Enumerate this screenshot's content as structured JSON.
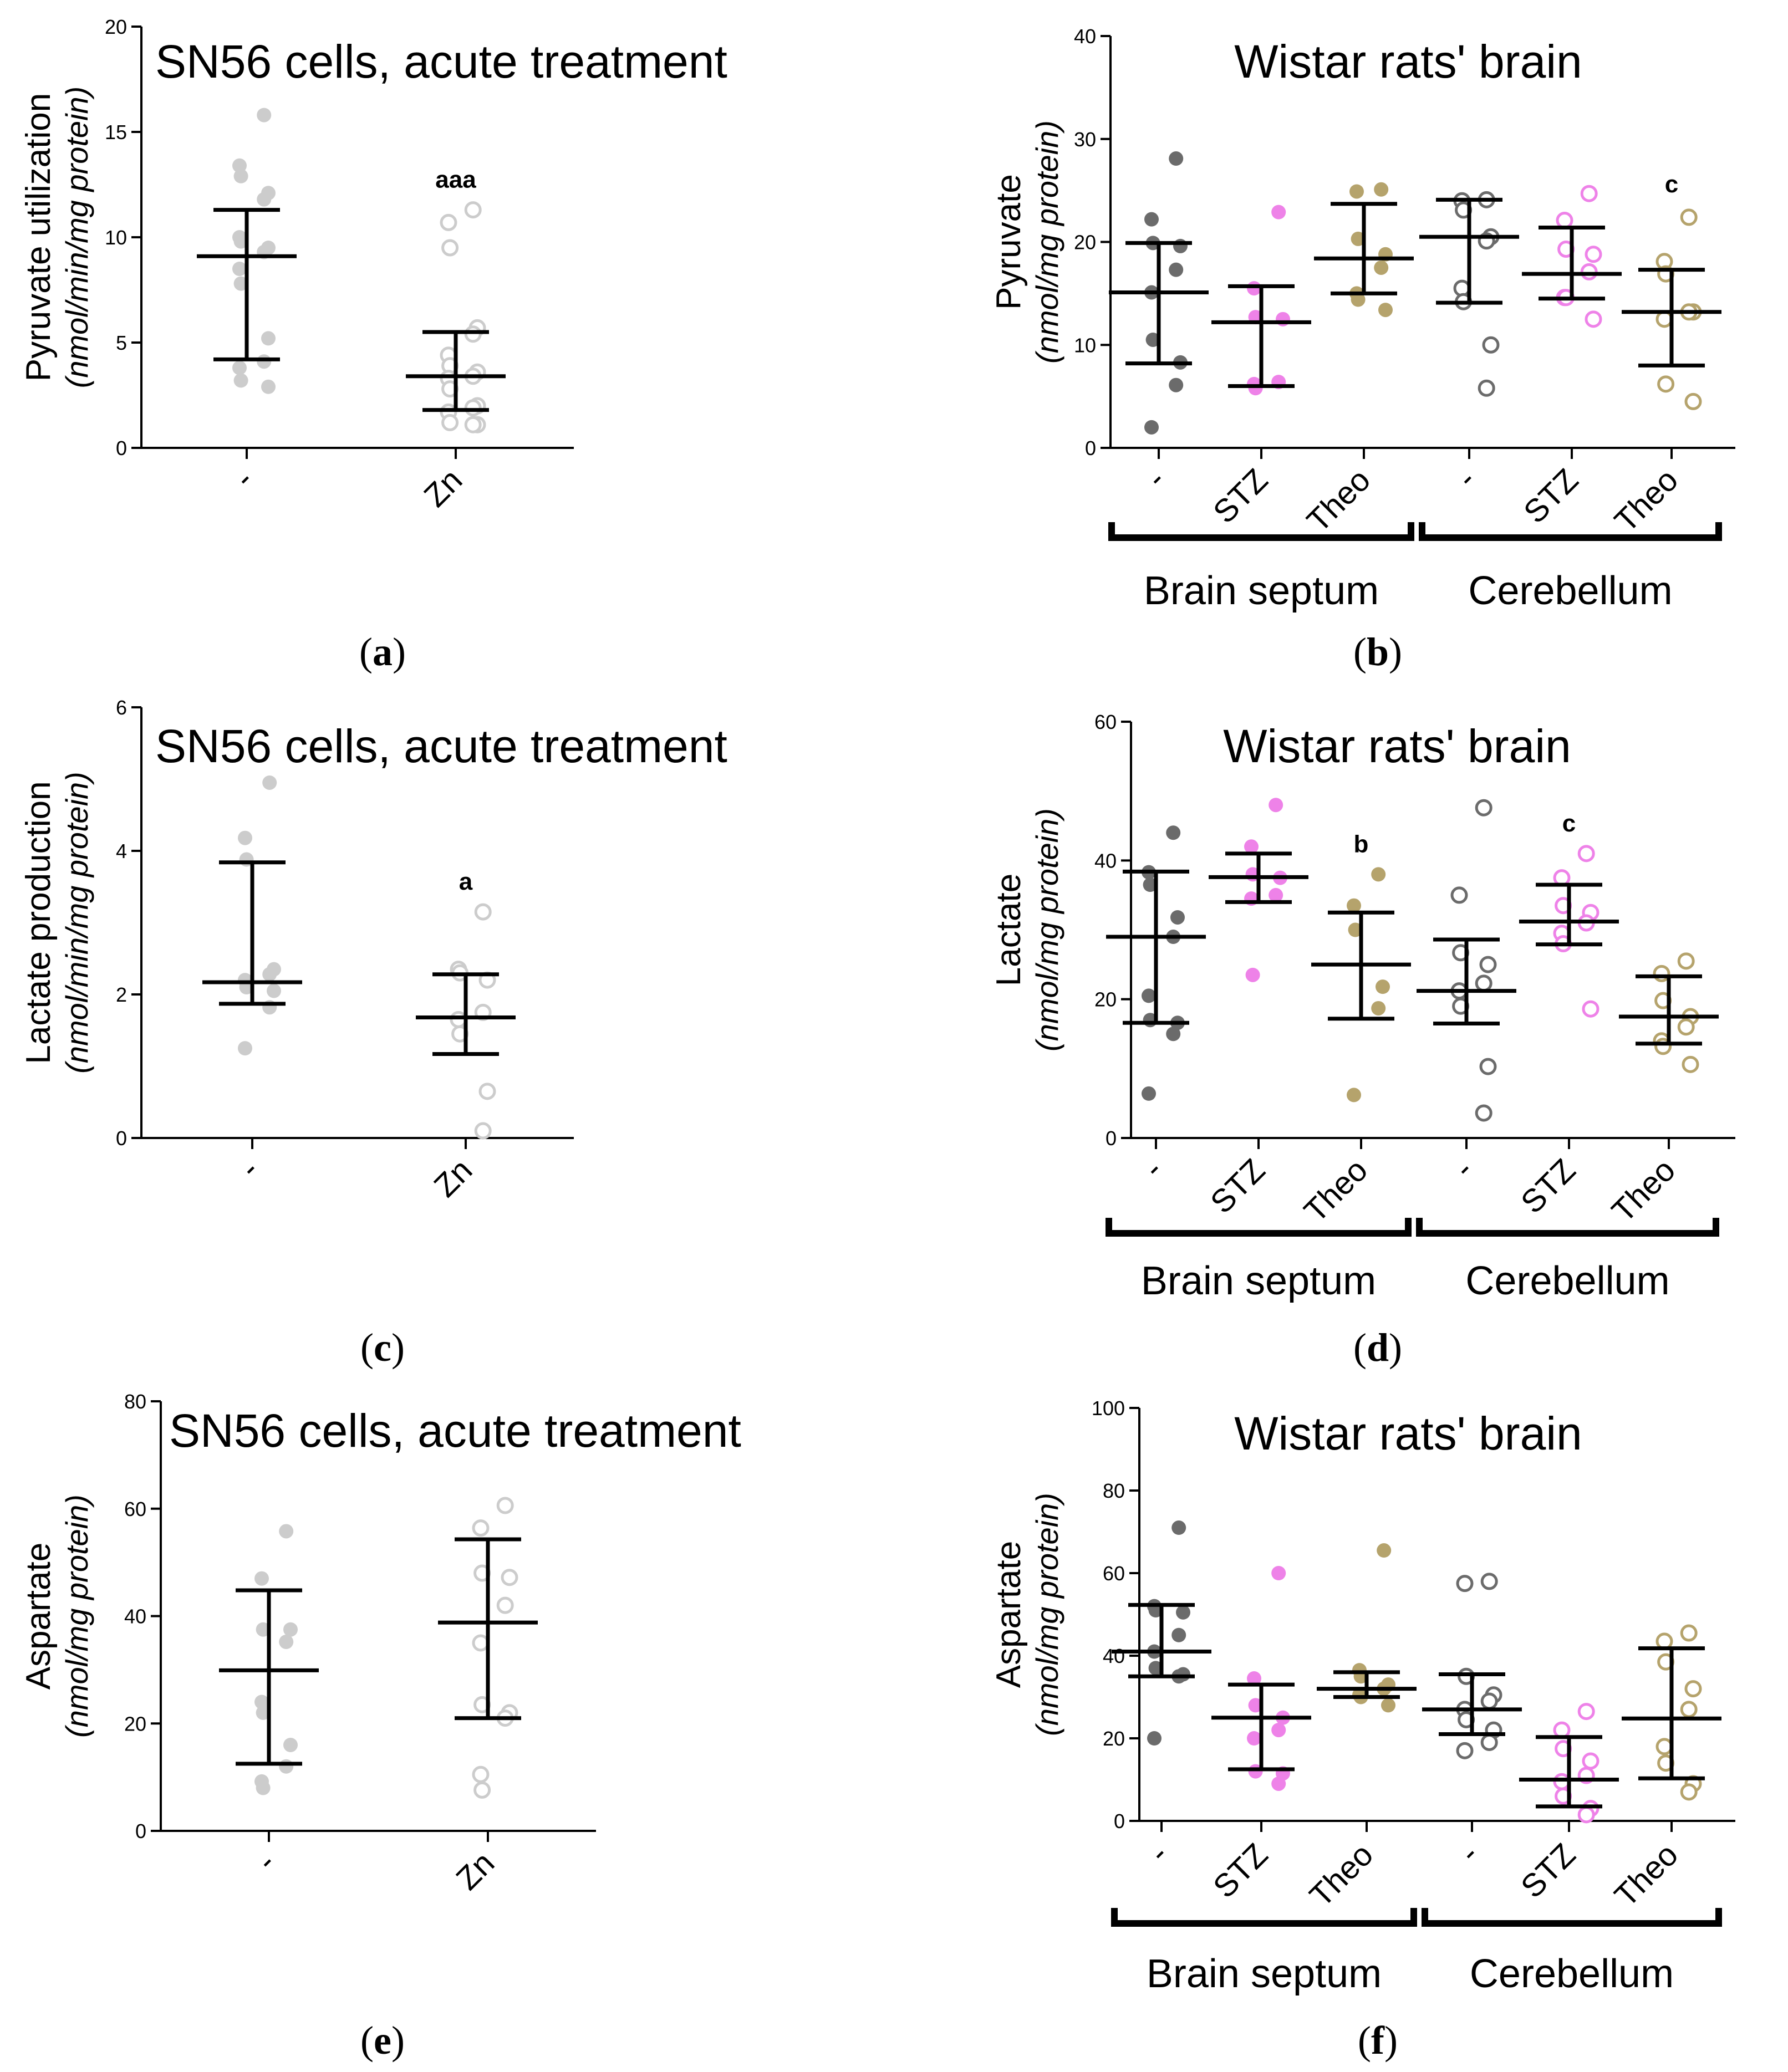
{
  "colors": {
    "sn56": "#cccccc",
    "ctrl": "#6b6b6b",
    "stz": "#ee82e8",
    "theo": "#b5a36c",
    "bar": "#000000"
  },
  "chart_data": [
    {
      "id": "a",
      "type": "scatter",
      "panel_label": "a",
      "title": "SN56 cells, acute treatment",
      "ylabel": "Pyruvate utilization",
      "ylabel_unit": "nmol/min/mg protein",
      "ylim": [
        0,
        20
      ],
      "yticks": [
        0,
        5,
        10,
        15,
        20
      ],
      "categories": [
        "-",
        "Zn"
      ],
      "groups": [],
      "series": [
        {
          "name": "-",
          "filled": true,
          "color": "sn56",
          "mean": 9.1,
          "sd_low": 4.2,
          "sd_high": 11.3,
          "sig": "",
          "points": [
            15.8,
            13.4,
            12.9,
            12.1,
            11.8,
            10.0,
            9.8,
            9.5,
            9.3,
            8.5,
            7.8,
            5.2,
            4.1,
            3.8,
            3.2,
            2.9
          ]
        },
        {
          "name": "Zn",
          "filled": false,
          "color": "sn56",
          "mean": 3.4,
          "sd_low": 1.8,
          "sd_high": 5.5,
          "sig": "aaa",
          "points": [
            11.3,
            10.7,
            9.5,
            5.7,
            5.4,
            4.4,
            3.9,
            3.6,
            3.4,
            3.3,
            2.8,
            2.0,
            1.9,
            1.7,
            1.2,
            1.1,
            1.1
          ]
        }
      ]
    },
    {
      "id": "b",
      "type": "scatter",
      "panel_label": "b",
      "title": "Wistar rats' brain",
      "ylabel": "Pyruvate",
      "ylabel_unit": "nmol/mg protein",
      "ylim": [
        0,
        40
      ],
      "yticks": [
        0,
        10,
        20,
        30,
        40
      ],
      "categories": [
        "-",
        "STZ",
        "Theo",
        "-",
        "STZ",
        "Theo"
      ],
      "groups": [
        {
          "label": "Brain septum",
          "from": 0,
          "to": 2
        },
        {
          "label": "Cerebellum",
          "from": 3,
          "to": 5
        }
      ],
      "series": [
        {
          "name": "-",
          "filled": true,
          "color": "ctrl",
          "mean": 15.1,
          "sd_low": 8.2,
          "sd_high": 19.9,
          "sig": "",
          "points": [
            28.1,
            22.2,
            19.9,
            19.6,
            17.3,
            15.1,
            10.5,
            8.3,
            6.1,
            2.0
          ]
        },
        {
          "name": "STZ",
          "filled": true,
          "color": "stz",
          "mean": 12.2,
          "sd_low": 6.0,
          "sd_high": 15.7,
          "sig": "",
          "points": [
            22.9,
            15.5,
            12.7,
            12.5,
            6.4,
            6.2,
            5.8
          ]
        },
        {
          "name": "Theo",
          "filled": true,
          "color": "theo",
          "mean": 18.4,
          "sd_low": 15.0,
          "sd_high": 23.7,
          "sig": "",
          "points": [
            25.1,
            24.9,
            20.3,
            18.8,
            17.5,
            15.0,
            14.4,
            13.4
          ]
        },
        {
          "name": "-",
          "filled": false,
          "color": "ctrl",
          "mean": 20.5,
          "sd_low": 14.1,
          "sd_high": 24.1,
          "sig": "",
          "points": [
            24.1,
            24.0,
            23.1,
            20.5,
            20.1,
            15.5,
            14.2,
            10.0,
            5.8
          ]
        },
        {
          "name": "STZ",
          "filled": false,
          "color": "stz",
          "mean": 16.9,
          "sd_low": 14.5,
          "sd_high": 21.4,
          "sig": "",
          "points": [
            24.7,
            22.1,
            19.3,
            18.8,
            17.1,
            14.6,
            14.6,
            12.5
          ]
        },
        {
          "name": "Theo",
          "filled": false,
          "color": "theo",
          "mean": 13.2,
          "sd_low": 8.0,
          "sd_high": 17.3,
          "sig": "c",
          "points": [
            22.4,
            18.1,
            16.9,
            13.2,
            13.2,
            12.5,
            6.2,
            4.5
          ]
        }
      ]
    },
    {
      "id": "c",
      "type": "scatter",
      "panel_label": "c",
      "title": "SN56 cells, acute treatment",
      "ylabel": "Lactate production",
      "ylabel_unit": "nmol/min/mg protein",
      "ylim": [
        0,
        6
      ],
      "yticks": [
        0,
        2,
        4,
        6
      ],
      "categories": [
        "-",
        "Zn"
      ],
      "groups": [],
      "series": [
        {
          "name": "-",
          "filled": true,
          "color": "sn56",
          "mean": 2.17,
          "sd_low": 1.87,
          "sd_high": 3.84,
          "sig": "",
          "points": [
            4.95,
            4.18,
            3.88,
            2.35,
            2.28,
            2.2,
            2.1,
            2.05,
            1.82,
            1.25
          ]
        },
        {
          "name": "Zn",
          "filled": false,
          "color": "sn56",
          "mean": 1.68,
          "sd_low": 1.17,
          "sd_high": 2.28,
          "sig": "a",
          "points": [
            3.15,
            2.35,
            2.3,
            2.2,
            1.75,
            1.65,
            1.45,
            0.65,
            0.1
          ]
        }
      ]
    },
    {
      "id": "d",
      "type": "scatter",
      "panel_label": "d",
      "title": "Wistar rats' brain",
      "ylabel": "Lactate",
      "ylabel_unit": "nmol/mg protein",
      "ylim": [
        0,
        60
      ],
      "yticks": [
        0,
        20,
        40,
        60
      ],
      "categories": [
        "-",
        "STZ",
        "Theo",
        "-",
        "STZ",
        "Theo"
      ],
      "groups": [
        {
          "label": "Brain septum",
          "from": 0,
          "to": 2
        },
        {
          "label": "Cerebellum",
          "from": 3,
          "to": 5
        }
      ],
      "series": [
        {
          "name": "-",
          "filled": true,
          "color": "ctrl",
          "mean": 29.0,
          "sd_low": 16.6,
          "sd_high": 38.4,
          "sig": "",
          "points": [
            44.0,
            38.3,
            36.5,
            31.8,
            29.0,
            20.5,
            17.0,
            16.6,
            15.0,
            6.4
          ]
        },
        {
          "name": "STZ",
          "filled": true,
          "color": "stz",
          "mean": 37.6,
          "sd_low": 34.0,
          "sd_high": 41.0,
          "sig": "",
          "points": [
            48.0,
            42.0,
            38.0,
            37.5,
            35.0,
            34.5,
            23.5
          ]
        },
        {
          "name": "Theo",
          "filled": true,
          "color": "theo",
          "mean": 25.0,
          "sd_low": 17.2,
          "sd_high": 32.5,
          "sig": "b",
          "points": [
            38.0,
            33.5,
            30.0,
            21.8,
            18.7,
            6.2
          ]
        },
        {
          "name": "-",
          "filled": false,
          "color": "ctrl",
          "mean": 21.2,
          "sd_low": 16.5,
          "sd_high": 28.6,
          "sig": "",
          "points": [
            47.6,
            35.0,
            26.7,
            25.0,
            22.3,
            21.2,
            19.0,
            10.3,
            3.6
          ]
        },
        {
          "name": "STZ",
          "filled": false,
          "color": "stz",
          "mean": 31.2,
          "sd_low": 27.9,
          "sd_high": 36.5,
          "sig": "c",
          "points": [
            41.0,
            37.5,
            33.5,
            32.5,
            31.0,
            29.5,
            28.0,
            18.6
          ]
        },
        {
          "name": "Theo",
          "filled": false,
          "color": "theo",
          "mean": 17.5,
          "sd_low": 13.6,
          "sd_high": 23.3,
          "sig": "",
          "points": [
            25.5,
            23.7,
            19.8,
            17.5,
            16.0,
            14.0,
            13.2,
            10.6
          ]
        }
      ]
    },
    {
      "id": "e",
      "type": "scatter",
      "panel_label": "e",
      "title": "SN56 cells, acute treatment",
      "ylabel": "Aspartate",
      "ylabel_unit": "nmol/mg protein",
      "ylim": [
        0,
        80
      ],
      "yticks": [
        0,
        20,
        40,
        60,
        80
      ],
      "categories": [
        "-",
        "Zn"
      ],
      "groups": [],
      "series": [
        {
          "name": "-",
          "filled": true,
          "color": "sn56",
          "mean": 29.9,
          "sd_low": 12.5,
          "sd_high": 44.8,
          "sig": "",
          "points": [
            55.8,
            47.0,
            37.5,
            37.5,
            35.2,
            24.0,
            22.0,
            16.0,
            12.0,
            9.2,
            8.0
          ]
        },
        {
          "name": "Zn",
          "filled": false,
          "color": "sn56",
          "mean": 38.8,
          "sd_low": 21.0,
          "sd_high": 54.3,
          "sig": "",
          "points": [
            60.6,
            56.4,
            48.0,
            47.2,
            42.0,
            35.0,
            23.5,
            22.0,
            21.0,
            10.5,
            7.6
          ]
        }
      ]
    },
    {
      "id": "f",
      "type": "scatter",
      "panel_label": "f",
      "title": "Wistar rats' brain",
      "ylabel": "Aspartate",
      "ylabel_unit": "nmol/mg protein",
      "ylim": [
        0,
        100
      ],
      "yticks": [
        0,
        20,
        40,
        60,
        80,
        100
      ],
      "categories": [
        "-",
        "STZ",
        "Theo",
        "-",
        "STZ",
        "Theo"
      ],
      "groups": [
        {
          "label": "Brain septum",
          "from": 0,
          "to": 2
        },
        {
          "label": "Cerebellum",
          "from": 3,
          "to": 5
        }
      ],
      "series": [
        {
          "name": "-",
          "filled": true,
          "color": "ctrl",
          "mean": 41.0,
          "sd_low": 35.0,
          "sd_high": 52.3,
          "sig": "",
          "points": [
            71.0,
            52.0,
            51.0,
            50.5,
            45.0,
            41.0,
            37.0,
            35.5,
            35.0,
            20.0
          ]
        },
        {
          "name": "STZ",
          "filled": true,
          "color": "stz",
          "mean": 25.0,
          "sd_low": 12.5,
          "sd_high": 33.0,
          "sig": "",
          "points": [
            60.0,
            34.5,
            28.0,
            25.0,
            22.0,
            20.0,
            12.0,
            11.5,
            9.0
          ]
        },
        {
          "name": "Theo",
          "filled": true,
          "color": "theo",
          "mean": 32.0,
          "sd_low": 30.0,
          "sd_high": 36.0,
          "sig": "",
          "points": [
            65.5,
            36.5,
            35.0,
            33.0,
            32.0,
            30.5,
            30.0,
            28.0
          ]
        },
        {
          "name": "-",
          "filled": false,
          "color": "ctrl",
          "mean": 27.0,
          "sd_low": 21.0,
          "sd_high": 35.5,
          "sig": "",
          "points": [
            58.0,
            57.5,
            35.0,
            30.5,
            29.0,
            27.0,
            24.5,
            22.0,
            19.0,
            17.0
          ]
        },
        {
          "name": "STZ",
          "filled": false,
          "color": "stz",
          "mean": 10.0,
          "sd_low": 3.5,
          "sd_high": 20.3,
          "sig": "",
          "points": [
            26.5,
            22.0,
            17.5,
            14.5,
            11.0,
            9.5,
            6.0,
            3.0,
            1.5
          ]
        },
        {
          "name": "Theo",
          "filled": false,
          "color": "theo",
          "mean": 24.8,
          "sd_low": 10.3,
          "sd_high": 41.8,
          "sig": "",
          "points": [
            45.5,
            43.5,
            38.5,
            32.0,
            27.0,
            18.0,
            14.0,
            9.0,
            7.0
          ]
        }
      ]
    }
  ]
}
